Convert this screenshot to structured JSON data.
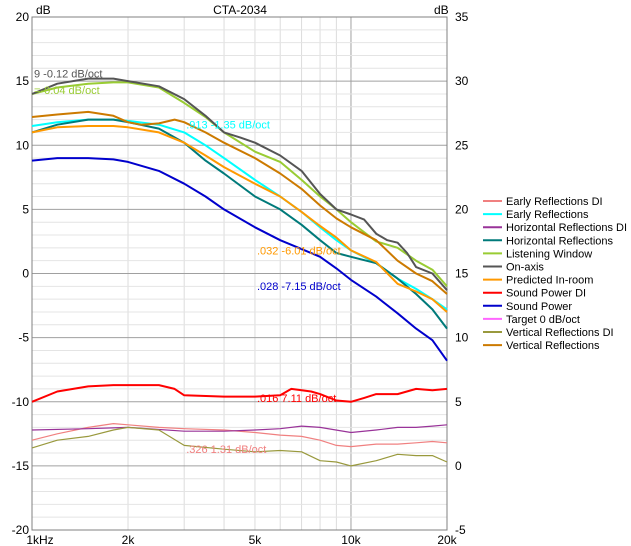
{
  "chart_data": {
    "type": "line",
    "title": "CTA-2034",
    "left_axis_unit": "dB",
    "right_axis_unit": "dB",
    "x_scale": "log",
    "xlim": [
      1000,
      20000
    ],
    "ylim_left": [
      -20,
      20
    ],
    "ylim_right": [
      -5,
      35
    ],
    "grid": true,
    "legend_position": "right",
    "x_ticks": [
      {
        "value": 1000,
        "label": "1kHz"
      },
      {
        "value": 2000,
        "label": "2k"
      },
      {
        "value": 5000,
        "label": "5k"
      },
      {
        "value": 10000,
        "label": "10k"
      },
      {
        "value": 20000,
        "label": "20k"
      }
    ],
    "y_ticks_left": [
      "20",
      "15",
      "10",
      "5",
      "0",
      "-5",
      "-10",
      "-15",
      "-20"
    ],
    "y_ticks_right": [
      "35",
      "30",
      "25",
      "20",
      "15",
      "10",
      "5",
      "0",
      "-5"
    ],
    "series": [
      {
        "name": "Early Reflections DI",
        "color": "#f08080",
        "axis": "right",
        "x": [
          1000,
          1200,
          1500,
          1800,
          2000,
          2500,
          3000,
          4000,
          5000,
          6000,
          7000,
          8000,
          9000,
          10000,
          12000,
          14000,
          16000,
          18000,
          20000
        ],
        "y": [
          2,
          2.5,
          3,
          3.3,
          3.2,
          3,
          2.9,
          2.8,
          2.6,
          2.4,
          2.3,
          2.0,
          1.6,
          1.5,
          1.7,
          1.7,
          1.8,
          1.9,
          1.8
        ]
      },
      {
        "name": "Early Reflections",
        "color": "#00ffff",
        "axis": "left",
        "x": [
          1000,
          1200,
          1500,
          1800,
          2000,
          2500,
          3000,
          3500,
          4000,
          5000,
          6000,
          7000,
          8000,
          9000,
          10000,
          12000,
          14000,
          16000,
          18000,
          20000
        ],
        "y": [
          11.5,
          11.8,
          12.0,
          12.0,
          11.9,
          11.6,
          11.0,
          10.0,
          9.0,
          7.3,
          6.0,
          4.8,
          3.6,
          2.6,
          1.8,
          0.8,
          -0.4,
          -1.2,
          -2.0,
          -2.8
        ]
      },
      {
        "name": "Horizontal Reflections DI",
        "color": "#993399",
        "axis": "right",
        "x": [
          1000,
          1500,
          2000,
          3000,
          4000,
          5000,
          6000,
          7000,
          8000,
          10000,
          12000,
          14000,
          16000,
          18000,
          20000
        ],
        "y": [
          2.8,
          2.9,
          3.0,
          2.7,
          2.7,
          2.8,
          2.9,
          3.1,
          3.0,
          2.6,
          2.8,
          3.0,
          3.0,
          3.1,
          3.2
        ]
      },
      {
        "name": "Horizontal Reflections",
        "color": "#007a7a",
        "axis": "left",
        "x": [
          1000,
          1200,
          1500,
          1800,
          2000,
          2500,
          3000,
          3500,
          4000,
          5000,
          6000,
          7000,
          8000,
          9000,
          10000,
          12000,
          14000,
          16000,
          18000,
          20000
        ],
        "y": [
          11.0,
          11.6,
          12.0,
          12.0,
          11.8,
          11.3,
          10.2,
          8.8,
          7.8,
          6.0,
          5.0,
          3.8,
          2.6,
          1.6,
          1.3,
          0.8,
          -0.4,
          -1.6,
          -2.8,
          -4.3
        ]
      },
      {
        "name": "Listening Window",
        "color": "#99cc33",
        "axis": "left",
        "x": [
          1000,
          1200,
          1500,
          1800,
          2000,
          2500,
          3000,
          3500,
          4000,
          5000,
          6000,
          7000,
          8000,
          9000,
          10000,
          12000,
          14000,
          16000,
          18000,
          20000
        ],
        "y": [
          14.0,
          14.5,
          14.8,
          14.9,
          14.9,
          14.5,
          13.3,
          12.2,
          11.0,
          9.5,
          8.7,
          7.3,
          6.0,
          5.0,
          4.0,
          2.5,
          2.0,
          1.0,
          0.3,
          -1.0
        ]
      },
      {
        "name": "On-axis",
        "color": "#555555",
        "axis": "left",
        "x": [
          1000,
          1200,
          1500,
          1800,
          2000,
          2500,
          3000,
          3500,
          4000,
          4500,
          5000,
          6000,
          7000,
          8000,
          9000,
          10000,
          11000,
          12000,
          13000,
          14000,
          15000,
          16000,
          18000,
          20000
        ],
        "y": [
          14.0,
          14.8,
          15.2,
          15.2,
          15.0,
          14.6,
          13.6,
          12.3,
          11.0,
          10.6,
          10.2,
          9.2,
          8.0,
          6.2,
          5.0,
          4.6,
          4.2,
          3.1,
          2.6,
          2.4,
          1.6,
          0.5,
          0.0,
          -1.3
        ]
      },
      {
        "name": "Predicted In-room",
        "color": "#ff9900",
        "axis": "left",
        "x": [
          1000,
          1200,
          1500,
          1800,
          2000,
          2500,
          3000,
          3500,
          4000,
          5000,
          6000,
          7000,
          8000,
          9000,
          10000,
          12000,
          14000,
          16000,
          18000,
          20000
        ],
        "y": [
          11.0,
          11.4,
          11.5,
          11.5,
          11.4,
          11.0,
          10.2,
          9.2,
          8.3,
          7.0,
          6.0,
          4.8,
          3.7,
          2.8,
          1.8,
          0.9,
          -0.8,
          -1.4,
          -2.0,
          -3.0
        ]
      },
      {
        "name": "Sound Power DI",
        "color": "#ff0000",
        "axis": "right",
        "x": [
          1000,
          1200,
          1500,
          1800,
          2000,
          2500,
          2800,
          3000,
          4000,
          5000,
          6000,
          6500,
          7500,
          8000,
          9000,
          10000,
          11000,
          12000,
          14000,
          16000,
          18000,
          20000
        ],
        "y": [
          5.0,
          5.8,
          6.2,
          6.3,
          6.3,
          6.3,
          6.0,
          5.5,
          5.4,
          5.4,
          5.5,
          6.0,
          5.8,
          5.6,
          5.1,
          5.0,
          5.3,
          5.6,
          5.6,
          6.0,
          5.9,
          6.0
        ]
      },
      {
        "name": "Sound Power",
        "color": "#0000cc",
        "axis": "left",
        "x": [
          1000,
          1200,
          1500,
          1800,
          2000,
          2500,
          3000,
          3500,
          4000,
          5000,
          6000,
          7000,
          8000,
          9000,
          10000,
          12000,
          14000,
          16000,
          18000,
          20000
        ],
        "y": [
          8.8,
          9.0,
          9.0,
          8.9,
          8.7,
          8.0,
          7.0,
          6.0,
          5.0,
          3.6,
          2.6,
          1.9,
          1.3,
          0.4,
          -0.5,
          -1.8,
          -3.1,
          -4.3,
          -5.2,
          -6.8
        ]
      },
      {
        "name": "Target 0 dB/oct",
        "color": "#ff66ff",
        "axis": "left",
        "x": [],
        "y": []
      },
      {
        "name": "Vertical Reflections DI",
        "color": "#99993d",
        "axis": "right",
        "x": [
          1000,
          1200,
          1500,
          1800,
          2000,
          2500,
          3000,
          4000,
          5000,
          6000,
          7000,
          8000,
          9000,
          10000,
          12000,
          14000,
          16000,
          18000,
          20000
        ],
        "y": [
          1.4,
          2.0,
          2.3,
          2.8,
          3.0,
          2.8,
          1.6,
          1.3,
          1.1,
          1.2,
          1.1,
          0.4,
          0.3,
          0.0,
          0.4,
          0.9,
          0.8,
          0.8,
          0.3
        ]
      },
      {
        "name": "Vertical Reflections",
        "color": "#cc7a00",
        "axis": "left",
        "x": [
          1000,
          1200,
          1500,
          1800,
          2000,
          2200,
          2500,
          2800,
          3000,
          3500,
          4000,
          5000,
          6000,
          7000,
          8000,
          9000,
          10000,
          12000,
          14000,
          16000,
          18000,
          20000
        ],
        "y": [
          12.2,
          12.4,
          12.6,
          12.3,
          11.8,
          11.6,
          11.7,
          12.0,
          11.8,
          11.0,
          10.2,
          9.0,
          7.8,
          6.6,
          5.3,
          4.3,
          3.6,
          2.6,
          1.0,
          0.0,
          -0.6,
          -1.6
        ]
      }
    ],
    "annotations": [
      {
        "text": "9  -0.12 dB/oct",
        "color": "#555555",
        "axis": "left",
        "x": 1000,
        "y": 15.3
      },
      {
        "text": "=-0.04 dB/oct",
        "color": "#99cc33",
        "axis": "left",
        "x": 1000,
        "y": 14.0
      },
      {
        "text": ".913  -1.35 dB/oct",
        "color": "#00ffff",
        "axis": "left",
        "x": 3000,
        "y": 11.3
      },
      {
        "text": ".032  -6.01 dB/oct",
        "color": "#ff9900",
        "axis": "left",
        "x": 5000,
        "y": 1.5
      },
      {
        "text": ".028  -7.15 dB/oct",
        "color": "#0000cc",
        "axis": "left",
        "x": 5000,
        "y": -1.3
      },
      {
        "text": ".016  7.11 dB/oct",
        "color": "#ff0000",
        "axis": "right",
        "x": 5000,
        "y": 5.0
      },
      {
        "text": ".326  1.31 dB/oct",
        "color": "#f08080",
        "axis": "right",
        "x": 3000,
        "y": 1.0
      }
    ]
  }
}
